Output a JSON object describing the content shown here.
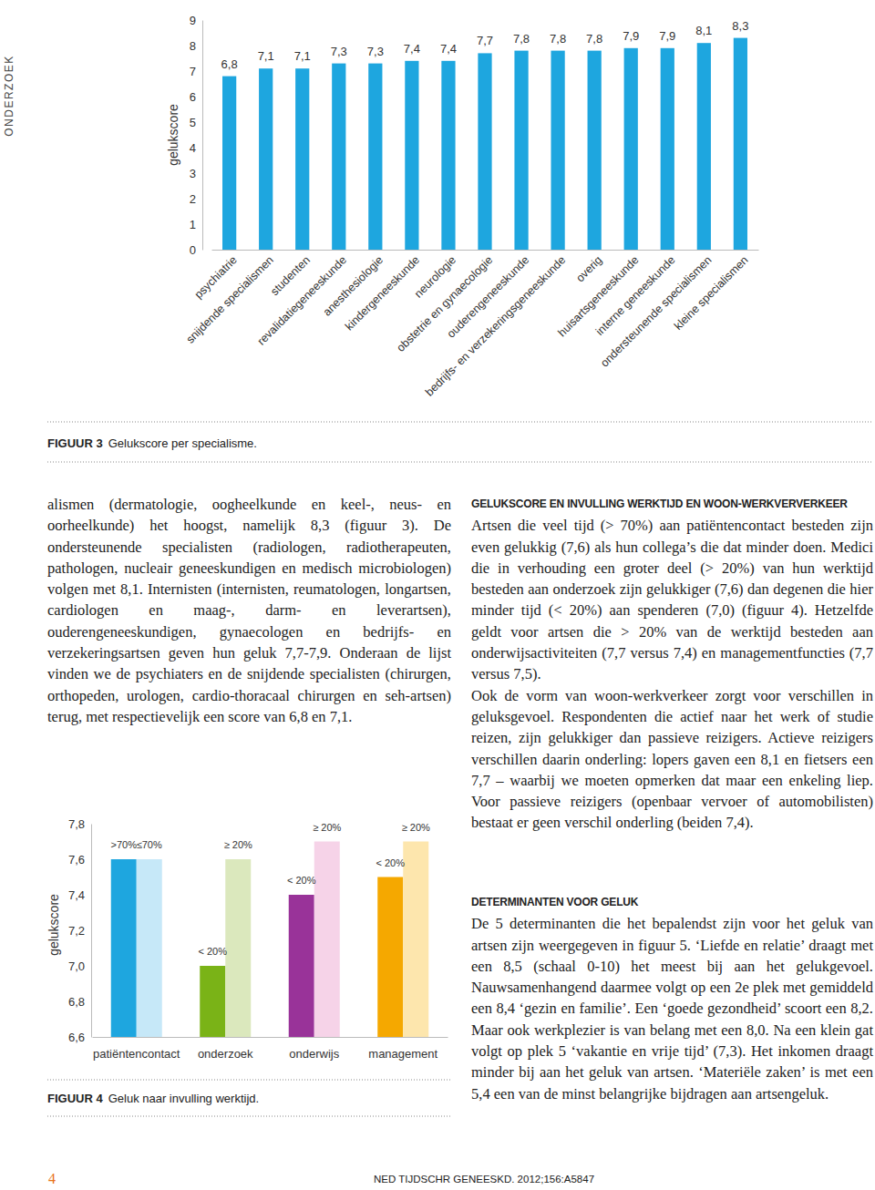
{
  "chart_data": [
    {
      "type": "bar",
      "y_label": "gelukscore",
      "categories": [
        "psychiatrie",
        "snijdende specialismen",
        "studenten",
        "revalidatiegeneeskunde",
        "anesthesiologie",
        "kindergeneeskunde",
        "neurologie",
        "obstetrie en gynaecologie",
        "ouderengeneeskunde",
        "bedrijfs- en verzekeringsgeneeskunde",
        "overig",
        "huisartsgeneeskunde",
        "interne geneeskunde",
        "ondersteunende specialismen",
        "kleine specialismen"
      ],
      "values": [
        6.8,
        7.1,
        7.1,
        7.3,
        7.3,
        7.4,
        7.4,
        7.7,
        7.8,
        7.8,
        7.8,
        7.9,
        7.9,
        8.1,
        8.3
      ],
      "value_labels": [
        "6,8",
        "7,1",
        "7,1",
        "7,3",
        "7,3",
        "7,4",
        "7,4",
        "7,7",
        "7,8",
        "7,8",
        "7,8",
        "7,9",
        "7,9",
        "8,1",
        "8,3"
      ],
      "data_labels": true,
      "color": "#1ea6df",
      "ylim": [
        0,
        9
      ],
      "yticks": [
        0,
        1,
        2,
        3,
        4,
        5,
        6,
        7,
        8,
        9
      ],
      "grid": false
    },
    {
      "type": "bar",
      "y_label": "gelukscore",
      "categories": [
        "patiëntencontact",
        "onderzoek",
        "onderwijs",
        "management"
      ],
      "series": [
        {
          "values": [
            7.6,
            7.0,
            7.4,
            7.5
          ],
          "colors": [
            "#1ea6df",
            "#7ab317",
            "#993399",
            "#f5a800"
          ],
          "annotations": [
            ">70%",
            "< 20%",
            "< 20%",
            "< 20%"
          ]
        },
        {
          "values": [
            7.6,
            7.6,
            7.7,
            7.7
          ],
          "colors": [
            "#c6e8f8",
            "#dbe8bd",
            "#f6d3e8",
            "#fde6ad"
          ],
          "annotations": [
            "≤70%",
            "≥ 20%",
            "≥ 20%",
            "≥ 20%"
          ]
        }
      ],
      "ylim": [
        6.6,
        7.8
      ],
      "yticks": [
        {
          "value": 6.6,
          "label": "6,6"
        },
        {
          "value": 6.8,
          "label": "6,8"
        },
        {
          "value": 7.0,
          "label": "7,0"
        },
        {
          "value": 7.2,
          "label": "7,2"
        },
        {
          "value": 7.4,
          "label": "7,4"
        },
        {
          "value": 7.6,
          "label": "7,6"
        },
        {
          "value": 7.8,
          "label": "7,8"
        }
      ],
      "grid": false
    }
  ],
  "document": {
    "side_label": "ONDERZOEK",
    "captions": [
      {
        "label": "FIGUUR 3",
        "text": "Gelukscore per specialisme."
      },
      {
        "label": "FIGUUR 4",
        "text": "Geluk naar invulling werktijd."
      }
    ],
    "left_column": [
      "alismen (dermatologie, oogheelkunde en keel-, neus- en oorheelkunde) het hoogst, namelijk 8,3 (figuur 3). De ondersteunende specialisten (radiologen, radiotherapeuten, pathologen, nucleair geneeskundigen en medisch microbiologen) volgen met 8,1. Internisten (internisten, reumatologen, longartsen, cardiologen en maag-, darm- en leverartsen), ouderengeneeskundigen, gynaecologen en bedrijfs- en verzekeringsartsen geven hun geluk 7,7-7,9. Onderaan de lijst vinden we de psychiaters en de snijdende specialisten (chirurgen, orthopeden, urologen, cardio-thoracaal chirurgen en seh-artsen) terug, met respectievelijk een score van 6,8 en 7,1."
    ],
    "sections": [
      {
        "heading": "Gelukscore en invulling werktijd en woon-werkververkeer",
        "paragraphs": [
          "Artsen die veel tijd (> 70%) aan patiëntencontact besteden zijn even gelukkig (7,6) als hun collega’s die dat minder doen. Medici die in verhouding een groter deel (> 20%) van hun werktijd besteden aan onderzoek zijn gelukkiger (7,6) dan degenen die hier minder tijd (< 20%) aan spenderen (7,0) (figuur 4). Hetzelfde geldt voor artsen die > 20% van de werktijd besteden aan onderwijsactiviteiten (7,7 versus 7,4) en managementfuncties (7,7 versus 7,5).",
          "Ook de vorm van woon-werkverkeer zorgt voor verschillen in geluksgevoel. Respondenten die actief naar het werk of studie reizen, zijn gelukkiger dan passieve reizigers. Actieve reizigers verschillen daarin onderling: lopers gaven een 8,1 en fietsers een 7,7 – waarbij we moeten opmerken dat maar een enkeling liep. Voor passieve reizigers (openbaar vervoer of automobilisten) bestaat er geen verschil onderling (beiden 7,4)."
        ]
      },
      {
        "heading": "Determinanten voor geluk",
        "paragraphs": [
          "De 5 determinanten die het bepalendst zijn voor het geluk van artsen zijn weergegeven in figuur 5. ‘Liefde en relatie’ draagt met een 8,5 (schaal 0-10) het meest bij aan het gelukgevoel. Nauwsamenhangend daarmee volgt op een 2e plek met gemiddeld een 8,4 ‘gezin en familie’. Een ‘goede gezondheid’ scoort een 8,2. Maar ook werkplezier is van belang met een 8,0. Na een klein gat volgt op plek 5 ‘vakantie en vrije tijd’ (7,3). Het inkomen draagt minder bij aan het geluk van artsen. ‘Materiële zaken’ is met een 5,4 een van de minst belangrijke bijdragen aan artsengeluk."
        ]
      }
    ],
    "page_number": "4",
    "footer": "NED TIJDSCHR GENEESKD. 2012;156:A5847"
  }
}
